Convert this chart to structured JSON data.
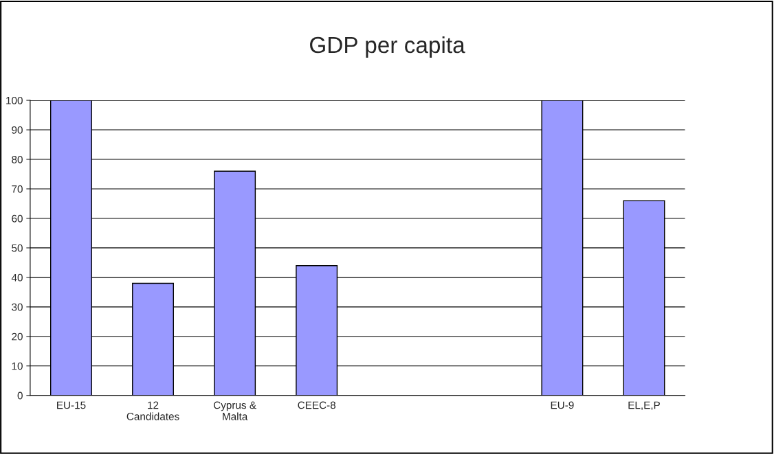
{
  "chart_data": {
    "type": "bar",
    "title": "GDP per capita",
    "categories": [
      "EU-15",
      "12\nCandidates",
      "Cyprus &\nMalta",
      "CEEC-8",
      null,
      null,
      "EU-9",
      "EL,E,P"
    ],
    "values": [
      100,
      38,
      76,
      44,
      null,
      null,
      100,
      66
    ],
    "color": "#9999ff",
    "ylim": [
      0,
      100
    ],
    "yticks": [
      0,
      10,
      20,
      30,
      40,
      50,
      60,
      70,
      80,
      90,
      100
    ],
    "grid": "y",
    "legend": false
  }
}
